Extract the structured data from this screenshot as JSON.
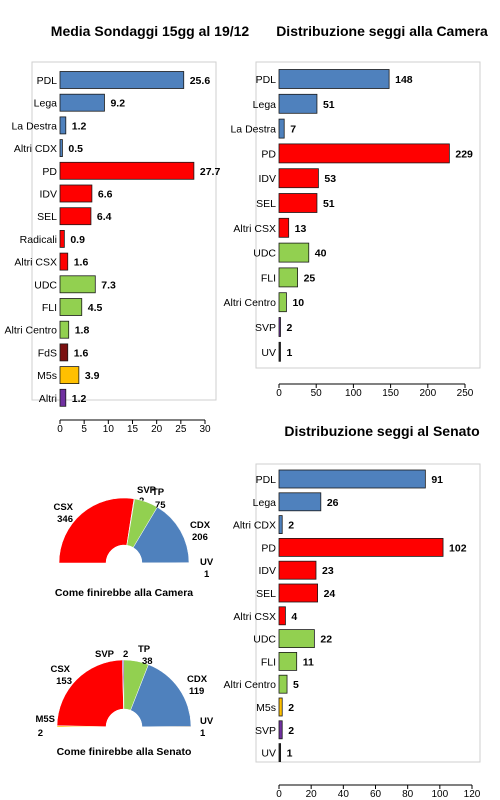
{
  "colors": {
    "blue": "#4f81bd",
    "red": "#ff0000",
    "green": "#92d050",
    "darkred": "#7b1010",
    "orange": "#ffc000",
    "purple": "#7030a0",
    "dark": "#222222"
  },
  "chart_data": [
    {
      "type": "bar",
      "orientation": "horizontal",
      "title": "Media Sondaggi 15gg  al 19/12",
      "categories": [
        "PDL",
        "Lega",
        "La Destra",
        "Altri CDX",
        "PD",
        "IDV",
        "SEL",
        "Radicali",
        "Altri CSX",
        "UDC",
        "FLI",
        "Altri Centro",
        "FdS",
        "M5s",
        "Altri"
      ],
      "values": [
        25.6,
        9.2,
        1.2,
        0.5,
        27.7,
        6.6,
        6.4,
        0.9,
        1.6,
        7.3,
        4.5,
        1.8,
        1.6,
        3.9,
        1.2
      ],
      "value_labels": [
        "25.6",
        "9.2",
        "1.2",
        "0.5",
        "27.7",
        "6.6",
        "6.4",
        "0.9",
        "1.6",
        "7.3",
        "4.5",
        "1.8",
        "1.6",
        "3.9",
        "1.2"
      ],
      "colors": [
        "blue",
        "blue",
        "blue",
        "blue",
        "red",
        "red",
        "red",
        "red",
        "red",
        "green",
        "green",
        "green",
        "darkred",
        "orange",
        "purple"
      ],
      "xlim": [
        0,
        30
      ],
      "ticks": [
        "0",
        "5",
        "10",
        "15",
        "20",
        "25",
        "30"
      ]
    },
    {
      "type": "bar",
      "orientation": "horizontal",
      "title": "Distribuzione seggi alla Camera",
      "categories": [
        "PDL",
        "Lega",
        "La Destra",
        "PD",
        "IDV",
        "SEL",
        "Altri CSX",
        "UDC",
        "FLI",
        "Altri Centro",
        "SVP",
        "UV"
      ],
      "values": [
        148,
        51,
        7,
        229,
        53,
        51,
        13,
        40,
        25,
        10,
        2,
        1
      ],
      "value_labels": [
        "148",
        "51",
        "7",
        "229",
        "53",
        "51",
        "13",
        "40",
        "25",
        "10",
        "2",
        "1"
      ],
      "colors": [
        "blue",
        "blue",
        "blue",
        "red",
        "red",
        "red",
        "red",
        "green",
        "green",
        "green",
        "purple",
        "dark"
      ],
      "xlim": [
        0,
        250
      ],
      "ticks": [
        "0",
        "50",
        "100",
        "150",
        "200",
        "250"
      ]
    },
    {
      "type": "bar",
      "orientation": "horizontal",
      "title": "Distribuzione seggi al Senato",
      "categories": [
        "PDL",
        "Lega",
        "Altri CDX",
        "PD",
        "IDV",
        "SEL",
        "Altri CSX",
        "UDC",
        "FLI",
        "Altri Centro",
        "M5s",
        "SVP",
        "UV"
      ],
      "values": [
        91,
        26,
        2,
        102,
        23,
        24,
        4,
        22,
        11,
        5,
        2,
        2,
        1
      ],
      "value_labels": [
        "91",
        "26",
        "2",
        "102",
        "23",
        "24",
        "4",
        "22",
        "11",
        "5",
        "2",
        "2",
        "1"
      ],
      "colors": [
        "blue",
        "blue",
        "blue",
        "red",
        "red",
        "red",
        "red",
        "green",
        "green",
        "green",
        "orange",
        "purple",
        "dark"
      ],
      "xlim": [
        0,
        120
      ],
      "ticks": [
        "0",
        "20",
        "40",
        "60",
        "80",
        "100",
        "120"
      ]
    },
    {
      "type": "pie",
      "style": "semicircle",
      "caption": "Come finirebbe alla Camera",
      "slices": [
        {
          "name": "CSX",
          "value": 346,
          "color": "red"
        },
        {
          "name": "SVP",
          "value": 2,
          "color": "purple"
        },
        {
          "name": "TP",
          "value": 75,
          "color": "green"
        },
        {
          "name": "CDX",
          "value": 206,
          "color": "blue"
        },
        {
          "name": "UV",
          "value": 1,
          "color": "dark"
        }
      ]
    },
    {
      "type": "pie",
      "style": "semicircle",
      "caption": "Come finirebbe alla Senato",
      "slices": [
        {
          "name": "M5S",
          "value": 2,
          "color": "orange"
        },
        {
          "name": "CSX",
          "value": 153,
          "color": "red"
        },
        {
          "name": "SVP",
          "value": 2,
          "color": "purple"
        },
        {
          "name": "TP",
          "value": 38,
          "color": "green"
        },
        {
          "name": "CDX",
          "value": 119,
          "color": "blue"
        },
        {
          "name": "UV",
          "value": 1,
          "color": "dark"
        }
      ]
    }
  ]
}
